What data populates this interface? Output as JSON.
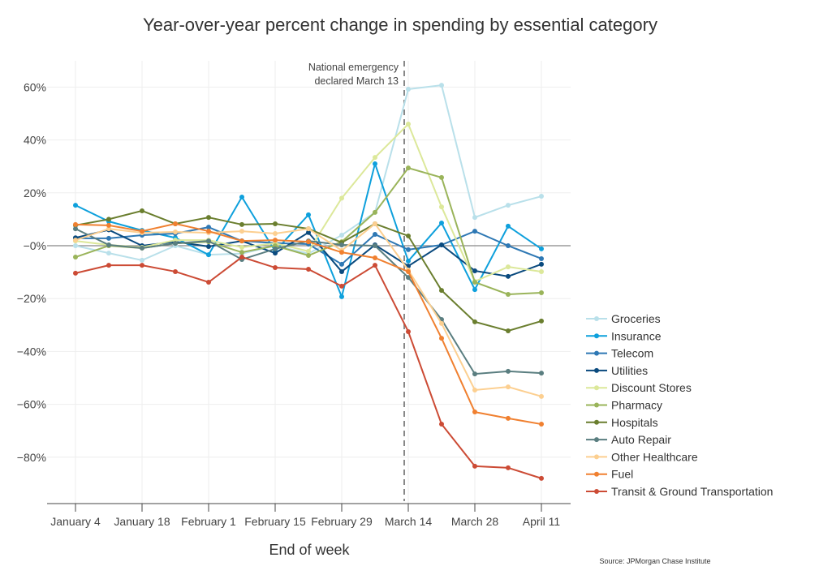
{
  "chart_data": {
    "type": "line",
    "title": "Year-over-year percent change in spending by essential category",
    "xlabel": "End of week",
    "ylabel": "",
    "source": "Source: JPMorgan Chase Institute",
    "annotation": {
      "text_line1": "National emergency",
      "text_line2": "declared March 13",
      "x": "March 13"
    },
    "x": [
      "January 4",
      "January 11",
      "January 18",
      "January 25",
      "February 1",
      "February 8",
      "February 15",
      "February 22",
      "February 29",
      "March 7",
      "March 14",
      "March 21",
      "March 28",
      "April 4",
      "April 11"
    ],
    "xticks": [
      "January 4",
      "January 18",
      "February 1",
      "February 15",
      "February 29",
      "March 14",
      "March 28",
      "April 11"
    ],
    "yticks": [
      60,
      40,
      20,
      0,
      -20,
      -40,
      -60,
      -80
    ],
    "ytick_labels": [
      "60%",
      "40%",
      "20%",
      "−0%",
      "−20%",
      "−40%",
      "−60%",
      "−80%"
    ],
    "ylim": [
      -97,
      70
    ],
    "grid": true,
    "legend": "right",
    "series": [
      {
        "name": "Groceries",
        "color": "#b9e0ea",
        "values": [
          0,
          -2.8,
          -5.5,
          0,
          -3.4,
          -3,
          0,
          -3,
          4,
          12.6,
          59.2,
          60.7,
          10.7,
          15.3,
          18.7
        ]
      },
      {
        "name": "Insurance",
        "color": "#0ea0dc",
        "values": [
          15.3,
          9.2,
          5.8,
          3,
          -3.4,
          18.4,
          -2.1,
          11.7,
          -19.3,
          31,
          -5.8,
          8.6,
          -16.6,
          7.4,
          -1.2
        ]
      },
      {
        "name": "Telecom",
        "color": "#2e78b4",
        "values": [
          2.8,
          2.8,
          4,
          4.6,
          7,
          1.8,
          1,
          0.6,
          -7,
          4.3,
          -1.5,
          0.3,
          5.5,
          0,
          -4.9
        ]
      },
      {
        "name": "Utilities",
        "color": "#0a4a7e",
        "values": [
          3,
          6,
          0,
          1.5,
          -0.3,
          1.8,
          -2.8,
          5,
          -9.8,
          0.3,
          -7.7,
          0.3,
          -9.5,
          -11.6,
          -7
        ]
      },
      {
        "name": "Discount Stores",
        "color": "#dce89a",
        "values": [
          1.8,
          0.3,
          -0.6,
          2.1,
          2.1,
          -0.6,
          0.9,
          -2.1,
          18,
          33.4,
          46,
          14.7,
          -13.5,
          -8,
          -9.8
        ]
      },
      {
        "name": "Pharmacy",
        "color": "#9ab45a",
        "values": [
          -4.3,
          0,
          -0.9,
          0.9,
          1.5,
          -2.5,
          0,
          -3.7,
          1.5,
          12.6,
          29.4,
          25.8,
          -13.8,
          -18.4,
          -17.8
        ]
      },
      {
        "name": "Hospitals",
        "color": "#6a7e2e",
        "values": [
          7.7,
          10,
          13.2,
          8.3,
          10.7,
          8,
          8.3,
          6.4,
          1.2,
          8.3,
          3.7,
          -16.9,
          -28.8,
          -32.2,
          -28.5
        ]
      },
      {
        "name": "Auto Repair",
        "color": "#5a7e80",
        "values": [
          6.4,
          0.3,
          -0.9,
          0.9,
          1.8,
          -5.2,
          -1.2,
          1.8,
          0.3,
          0,
          -12,
          -27.9,
          -48.5,
          -47.5,
          -48.2
        ]
      },
      {
        "name": "Other Healthcare",
        "color": "#fccf90",
        "values": [
          2.1,
          6.4,
          4.9,
          5.2,
          4.9,
          5.5,
          4.6,
          6.4,
          -1.8,
          8.3,
          -9.2,
          -29.4,
          -54.6,
          -53.4,
          -57
        ]
      },
      {
        "name": "Fuel",
        "color": "#f08030",
        "values": [
          8,
          7.7,
          5.5,
          8.3,
          5.5,
          1.8,
          2.1,
          1.5,
          -2.5,
          -4.6,
          -9.8,
          -35,
          -62.9,
          -65.3,
          -67.5
        ]
      },
      {
        "name": "Transit & Ground Transportation",
        "color": "#cc4b35",
        "values": [
          -10.4,
          -7.4,
          -7.4,
          -9.8,
          -13.8,
          -4.3,
          -8.3,
          -8.9,
          -15.3,
          -7.4,
          -32.5,
          -67.5,
          -83.4,
          -84,
          -88
        ]
      }
    ]
  }
}
